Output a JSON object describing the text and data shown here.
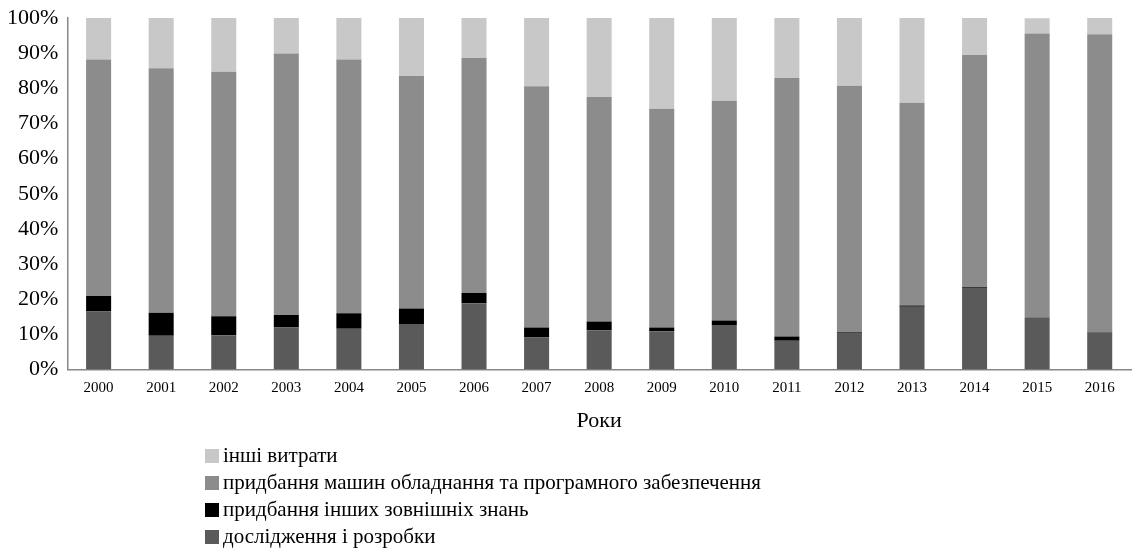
{
  "chart_data": {
    "type": "bar",
    "stacked": true,
    "xlabel": "Роки",
    "categories": [
      "2000",
      "2001",
      "2002",
      "2003",
      "2004",
      "2005",
      "2006",
      "2007",
      "2008",
      "2009",
      "2010",
      "2011",
      "2012",
      "2013",
      "2014",
      "2015",
      "2016"
    ],
    "series": [
      {
        "name": "дослідження і розробки",
        "color": "#5a5a5a",
        "values": [
          16.5,
          9.6,
          9.8,
          12.0,
          11.6,
          13.0,
          18.9,
          9.1,
          11.2,
          10.9,
          12.7,
          8.2,
          10.5,
          17.9,
          23.2,
          14.9,
          10.5
        ]
      },
      {
        "name": "придбання інших зовнішніх знань",
        "color": "#000000",
        "values": [
          4.4,
          6.6,
          5.4,
          3.5,
          4.4,
          4.4,
          2.9,
          2.9,
          2.5,
          1.1,
          1.3,
          1.2,
          0.2,
          0.3,
          0.2,
          null,
          0.1
        ]
      },
      {
        "name": "придбання машин обладнання та програмного забезпечення",
        "color": "#8c8c8c",
        "values": [
          67.3,
          69.5,
          69.5,
          74.4,
          72.2,
          66.1,
          66.8,
          68.6,
          63.8,
          62.2,
          62.5,
          73.5,
          70.0,
          57.7,
          66.1,
          80.7,
          84.8
        ]
      },
      {
        "name": "інші витрати",
        "color": "#c8c8c8",
        "values": [
          11.8,
          14.3,
          15.3,
          10.1,
          11.8,
          16.5,
          11.4,
          19.4,
          22.5,
          25.8,
          23.5,
          17.1,
          19.3,
          24.1,
          10.5,
          4.3,
          4.6
        ]
      }
    ],
    "ylim": [
      0,
      100
    ],
    "yticks": [
      {
        "value": 0,
        "label": "0%"
      },
      {
        "value": 10,
        "label": "10%"
      },
      {
        "value": 20,
        "label": "20%"
      },
      {
        "value": 30,
        "label": "30%"
      },
      {
        "value": 40,
        "label": "40%"
      },
      {
        "value": 50,
        "label": "50%"
      },
      {
        "value": 60,
        "label": "60%"
      },
      {
        "value": 70,
        "label": "70%"
      },
      {
        "value": 80,
        "label": "80%"
      },
      {
        "value": 90,
        "label": "90%"
      },
      {
        "value": 100,
        "label": "100%"
      }
    ],
    "grid": false,
    "legend": "bottom"
  }
}
